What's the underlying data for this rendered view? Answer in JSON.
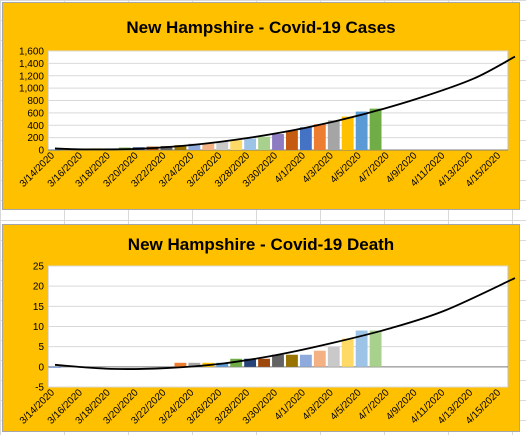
{
  "charts": [
    {
      "title": "New Hampshire - Covid-19 Cases",
      "x_labels": [
        "3/14/2020",
        "3/16/2020",
        "3/18/2020",
        "3/20/2020",
        "3/22/2020",
        "3/24/2020",
        "3/26/2020",
        "3/28/2020",
        "3/30/2020",
        "4/1/2020",
        "4/3/2020",
        "4/5/2020",
        "4/7/2020",
        "4/9/2020",
        "4/11/2020",
        "4/13/2020",
        "4/15/2020"
      ],
      "y_ticks": [
        "0",
        "200",
        "400",
        "600",
        "800",
        "1,000",
        "1,200",
        "1,400",
        "1,600"
      ]
    },
    {
      "title": "New Hampshire - Covid-19 Death",
      "x_labels": [
        "3/14/2020",
        "3/16/2020",
        "3/18/2020",
        "3/20/2020",
        "3/22/2020",
        "3/24/2020",
        "3/26/2020",
        "3/28/2020",
        "3/30/2020",
        "4/1/2020",
        "4/3/2020",
        "4/5/2020",
        "4/7/2020",
        "4/9/2020",
        "4/11/2020",
        "4/13/2020",
        "4/15/2020"
      ],
      "y_ticks": [
        "-5",
        "0",
        "5",
        "10",
        "15",
        "20",
        "25"
      ]
    }
  ],
  "chart_data": [
    {
      "type": "bar",
      "title": "New Hampshire - Covid-19 Cases",
      "x_start": "3/14/2020",
      "x_end": "4/15/2020",
      "ylim": [
        0,
        1600
      ],
      "grid": true,
      "bars": [
        {
          "x": "3/14/2020",
          "y": 6
        },
        {
          "x": "3/15/2020",
          "y": 13
        },
        {
          "x": "3/16/2020",
          "y": 17
        },
        {
          "x": "3/17/2020",
          "y": 26
        },
        {
          "x": "3/18/2020",
          "y": 26
        },
        {
          "x": "3/19/2020",
          "y": 39
        },
        {
          "x": "3/20/2020",
          "y": 44
        },
        {
          "x": "3/21/2020",
          "y": 55
        },
        {
          "x": "3/22/2020",
          "y": 65
        },
        {
          "x": "3/23/2020",
          "y": 78
        },
        {
          "x": "3/24/2020",
          "y": 101
        },
        {
          "x": "3/25/2020",
          "y": 108
        },
        {
          "x": "3/26/2020",
          "y": 137
        },
        {
          "x": "3/27/2020",
          "y": 158
        },
        {
          "x": "3/28/2020",
          "y": 187
        },
        {
          "x": "3/29/2020",
          "y": 214
        },
        {
          "x": "3/30/2020",
          "y": 258
        },
        {
          "x": "3/31/2020",
          "y": 314
        },
        {
          "x": "4/1/2020",
          "y": 367
        },
        {
          "x": "4/2/2020",
          "y": 415
        },
        {
          "x": "4/3/2020",
          "y": 479
        },
        {
          "x": "4/4/2020",
          "y": 540
        },
        {
          "x": "4/5/2020",
          "y": 621
        },
        {
          "x": "4/6/2020",
          "y": 669
        }
      ],
      "trendline": [
        {
          "x": "3/14/2020",
          "y": 25
        },
        {
          "x": "3/16/2020",
          "y": 10
        },
        {
          "x": "3/20/2020",
          "y": 20
        },
        {
          "x": "3/24/2020",
          "y": 85
        },
        {
          "x": "3/28/2020",
          "y": 200
        },
        {
          "x": "4/1/2020",
          "y": 360
        },
        {
          "x": "4/5/2020",
          "y": 570
        },
        {
          "x": "4/9/2020",
          "y": 830
        },
        {
          "x": "4/13/2020",
          "y": 1150
        },
        {
          "x": "4/16/2020",
          "y": 1510
        }
      ]
    },
    {
      "type": "bar",
      "title": "New Hampshire - Covid-19 Death",
      "x_start": "3/14/2020",
      "x_end": "4/15/2020",
      "ylim": [
        -5,
        25
      ],
      "grid": true,
      "bars": [
        {
          "x": "3/14/2020",
          "y": 0
        },
        {
          "x": "3/23/2020",
          "y": 1
        },
        {
          "x": "3/24/2020",
          "y": 1
        },
        {
          "x": "3/25/2020",
          "y": 1
        },
        {
          "x": "3/26/2020",
          "y": 1
        },
        {
          "x": "3/27/2020",
          "y": 2
        },
        {
          "x": "3/28/2020",
          "y": 2
        },
        {
          "x": "3/29/2020",
          "y": 2
        },
        {
          "x": "3/30/2020",
          "y": 3
        },
        {
          "x": "3/31/2020",
          "y": 3
        },
        {
          "x": "4/1/2020",
          "y": 3
        },
        {
          "x": "4/2/2020",
          "y": 4
        },
        {
          "x": "4/3/2020",
          "y": 5
        },
        {
          "x": "4/4/2020",
          "y": 7
        },
        {
          "x": "4/5/2020",
          "y": 9
        },
        {
          "x": "4/6/2020",
          "y": 9
        }
      ],
      "trendline": [
        {
          "x": "3/14/2020",
          "y": 0.5
        },
        {
          "x": "3/18/2020",
          "y": -0.5
        },
        {
          "x": "3/22/2020",
          "y": -0.3
        },
        {
          "x": "3/26/2020",
          "y": 0.8
        },
        {
          "x": "3/30/2020",
          "y": 3
        },
        {
          "x": "4/3/2020",
          "y": 6
        },
        {
          "x": "4/7/2020",
          "y": 9.5
        },
        {
          "x": "4/11/2020",
          "y": 14
        },
        {
          "x": "4/16/2020",
          "y": 22
        }
      ]
    }
  ],
  "colors": {
    "panel_bg": "#ffc000",
    "bar_palette": [
      "#4472c4",
      "#ed7d31",
      "#a5a5a5",
      "#ffc000",
      "#5b9bd5",
      "#70ad47",
      "#264478",
      "#9e480e",
      "#636363",
      "#997300",
      "#8faadc",
      "#f4b183",
      "#c9c9c9",
      "#ffd966",
      "#9dc3e6",
      "#a9d18e",
      "#8e7cc3",
      "#c55a11"
    ],
    "trendline": "#000000"
  }
}
